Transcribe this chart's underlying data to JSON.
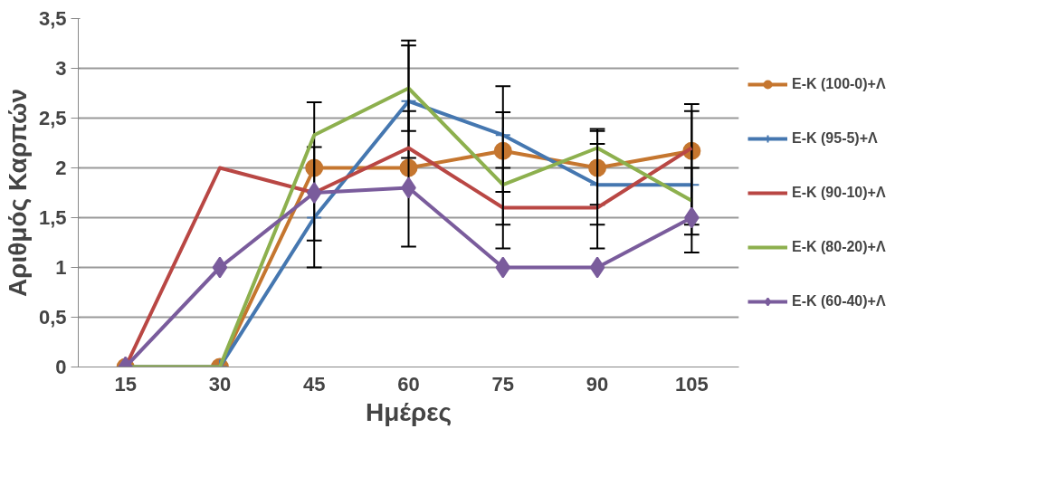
{
  "chart_data": {
    "type": "line",
    "xlabel": "Ημέρες",
    "ylabel": "Αριθμός Καρπών",
    "categories": [
      "15",
      "30",
      "45",
      "60",
      "75",
      "90",
      "105"
    ],
    "series": [
      {
        "name": "E-K (100-0)+Λ",
        "color": "#c5762f",
        "marker": "circle",
        "values": [
          0,
          0,
          2,
          2,
          2.17,
          2,
          2.17
        ],
        "errors": [
          null,
          null,
          [
            1.27,
            2.66
          ],
          [
            1.21,
            2.57
          ],
          [
            1.43,
            2.82
          ],
          [
            1.63,
            2.39
          ],
          [
            1.43,
            2.64
          ]
        ]
      },
      {
        "name": "E-K (95-5)+Λ",
        "color": "#4577b0",
        "marker": "cross",
        "values": [
          0,
          0,
          1.5,
          2.67,
          2.33,
          1.83,
          1.83
        ],
        "errors": [
          null,
          null,
          [
            1.0,
            2.21
          ],
          [
            2.1,
            3.28
          ],
          [
            1.76,
            2.56
          ],
          [
            1.19,
            2.37
          ],
          [
            1.15,
            2.57
          ]
        ]
      },
      {
        "name": "E-K (90-10)+Λ",
        "color": "#b94744",
        "marker": "none",
        "values": [
          0,
          2,
          1.75,
          2.2,
          1.6,
          1.6,
          2.2
        ]
      },
      {
        "name": "E-K (80-20)+Λ",
        "color": "#8db04e",
        "marker": "none",
        "values": [
          0,
          0,
          2.33,
          2.8,
          1.83,
          2.2,
          1.67
        ],
        "errors": [
          null,
          null,
          null,
          [
            2.37,
            3.23
          ],
          [
            1.19,
            2.0
          ],
          [
            1.43,
            2.24
          ],
          [
            1.33,
            2.0
          ]
        ]
      },
      {
        "name": "E-K (60-40)+Λ",
        "color": "#7a5c9c",
        "marker": "diamond",
        "values": [
          0,
          1,
          1.75,
          1.8,
          1,
          1,
          1.5
        ]
      }
    ],
    "ylim": [
      0,
      3.5
    ],
    "yticks": [
      0,
      {
        "value": 0.5,
        "label": "0,5"
      },
      1,
      {
        "value": 1.5,
        "label": "1,5"
      },
      2,
      {
        "value": 2.5,
        "label": "2,5"
      },
      3,
      {
        "value": 3.5,
        "label": "3,5"
      }
    ],
    "grid": "y",
    "legend": "right"
  }
}
